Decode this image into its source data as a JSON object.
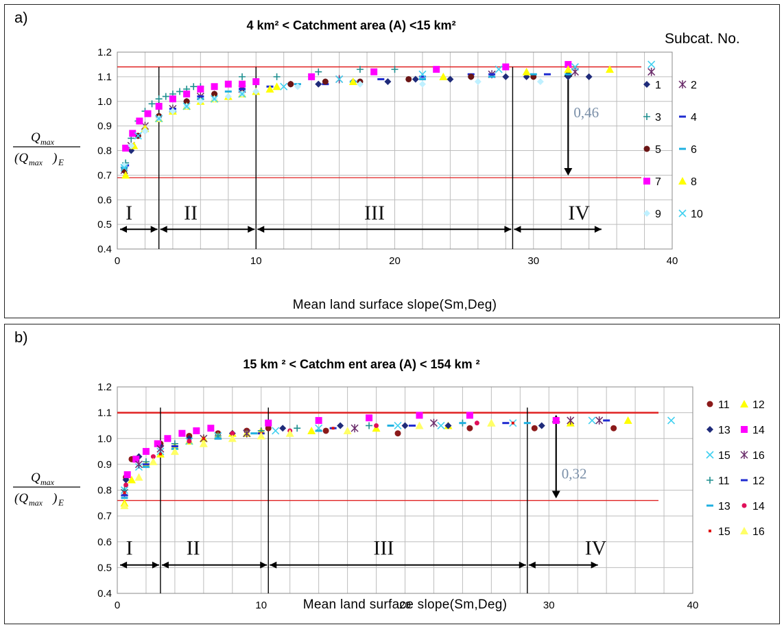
{
  "chart_data": [
    {
      "type": "scatter",
      "panel": "a)",
      "title": "4 km² < Catchment area (A) <15 km²",
      "xlabel": "Mean land surface slope(Sm,Deg)",
      "ylabel": "Qmax / (Qmax)E",
      "ylabel_num": "Q",
      "ylabel_num_sub": "max",
      "ylabel_den": "(Q",
      "ylabel_den_sub": "max",
      "ylabel_den_end": ")",
      "ylabel_den_E": "E",
      "xlim": [
        0,
        40
      ],
      "ylim": [
        0.4,
        1.2
      ],
      "xticks": [
        "0",
        "10",
        "20",
        "30",
        "40"
      ],
      "yticks": [
        "0.4",
        "0.5",
        "0.6",
        "0.7",
        "0.8",
        "0.9",
        "1.0",
        "1.1",
        "1.2"
      ],
      "grid": true,
      "legend_title": "Subcat. No.",
      "legend_position": "right",
      "series": [
        {
          "name": "1",
          "marker": "diamond",
          "color": "#1f2b7a",
          "x": [
            0.5,
            1,
            2,
            3,
            5,
            7,
            9,
            12.5,
            14.5,
            17,
            19.5,
            21.5,
            24,
            25.5,
            28,
            29.5,
            32.5,
            34
          ],
          "y": [
            0.73,
            0.8,
            0.88,
            0.94,
            1.0,
            1.03,
            1.05,
            1.07,
            1.07,
            1.08,
            1.08,
            1.09,
            1.09,
            1.1,
            1.1,
            1.1,
            1.1,
            1.1
          ]
        },
        {
          "name": "2",
          "marker": "star",
          "color": "#6b2d6b",
          "x": [
            0.5,
            1,
            2,
            4,
            6,
            9,
            16,
            27,
            33,
            38.5
          ],
          "y": [
            0.72,
            0.82,
            0.9,
            0.97,
            1.02,
            1.05,
            1.09,
            1.11,
            1.12,
            1.12
          ]
        },
        {
          "name": "3",
          "marker": "plus",
          "color": "#1f8f8f",
          "x": [
            0.6,
            1,
            1.5,
            2,
            2.5,
            3,
            3.5,
            4,
            4.5,
            5,
            5.5,
            6,
            9,
            11.5,
            14.5,
            17.5,
            20
          ],
          "y": [
            0.75,
            0.85,
            0.92,
            0.96,
            0.99,
            1.01,
            1.02,
            1.03,
            1.04,
            1.05,
            1.06,
            1.06,
            1.1,
            1.1,
            1.12,
            1.13,
            1.13
          ]
        },
        {
          "name": "4",
          "marker": "dash",
          "color": "#1f2bd0",
          "x": [
            0.6,
            2,
            4,
            6,
            9,
            11,
            15,
            19,
            22,
            25.5,
            27,
            31
          ],
          "y": [
            0.74,
            0.88,
            0.97,
            1.02,
            1.05,
            1.06,
            1.07,
            1.09,
            1.1,
            1.11,
            1.11,
            1.11
          ]
        },
        {
          "name": "5",
          "marker": "circle",
          "color": "#6b1515",
          "x": [
            0.5,
            1.5,
            3,
            5,
            7,
            12.5,
            15,
            17.5,
            21,
            25.5,
            30
          ],
          "y": [
            0.72,
            0.86,
            0.94,
            1.0,
            1.03,
            1.07,
            1.08,
            1.08,
            1.09,
            1.1,
            1.1
          ]
        },
        {
          "name": "6",
          "marker": "dash",
          "color": "#1fb0e0",
          "x": [
            0.5,
            2,
            4,
            6,
            8,
            13,
            17,
            22,
            27,
            30,
            32.5
          ],
          "y": [
            0.73,
            0.88,
            0.96,
            1.01,
            1.04,
            1.07,
            1.08,
            1.09,
            1.1,
            1.11,
            1.11
          ]
        },
        {
          "name": "7",
          "marker": "square",
          "color": "#ff00ff",
          "x": [
            0.6,
            1.1,
            1.6,
            2.2,
            3,
            4,
            5,
            6,
            7,
            8,
            9,
            10,
            14,
            18.5,
            23,
            28,
            32.5
          ],
          "y": [
            0.81,
            0.87,
            0.92,
            0.95,
            0.98,
            1.01,
            1.03,
            1.05,
            1.06,
            1.07,
            1.07,
            1.08,
            1.1,
            1.12,
            1.13,
            1.14,
            1.15
          ]
        },
        {
          "name": "8",
          "marker": "triangle",
          "color": "#ffff00",
          "x": [
            0.6,
            1.2,
            2,
            3,
            4,
            5,
            6,
            7,
            8,
            9,
            10,
            11,
            11.5,
            17,
            23.5,
            29.5,
            32.5,
            35.5
          ],
          "y": [
            0.7,
            0.82,
            0.89,
            0.93,
            0.96,
            0.98,
            1.0,
            1.01,
            1.02,
            1.03,
            1.04,
            1.05,
            1.06,
            1.08,
            1.1,
            1.12,
            1.13,
            1.13
          ]
        },
        {
          "name": "9",
          "marker": "diamond",
          "color": "#bff0ff",
          "x": [
            0.5,
            1,
            2,
            3,
            4,
            5,
            6,
            7,
            8,
            9,
            10,
            13,
            17.5,
            22,
            26,
            30.5
          ],
          "y": [
            0.74,
            0.82,
            0.88,
            0.93,
            0.96,
            0.98,
            1.0,
            1.01,
            1.02,
            1.03,
            1.04,
            1.06,
            1.07,
            1.07,
            1.08,
            1.08
          ]
        },
        {
          "name": "10",
          "marker": "x",
          "color": "#40d0f0",
          "x": [
            0.5,
            1.5,
            3,
            5,
            7,
            9,
            12,
            16,
            22,
            27.5,
            33,
            38.5
          ],
          "y": [
            0.73,
            0.86,
            0.93,
            0.98,
            1.01,
            1.03,
            1.06,
            1.09,
            1.11,
            1.13,
            1.14,
            1.15
          ]
        }
      ],
      "reference_lines": {
        "y_upper": 1.14,
        "y_lower": 0.69,
        "vertical_x": [
          3,
          10,
          28.5
        ],
        "annotation": "0,46"
      },
      "zones": [
        "I",
        "II",
        "III",
        "IV"
      ]
    },
    {
      "type": "scatter",
      "panel": "b)",
      "title": "15 km ² < Catchm ent area (A) < 154 km ²",
      "xlabel": "Mean land surface slope(Sm,Deg)",
      "ylabel": "Qmax / (Qmax)E",
      "ylabel_num": "Q",
      "ylabel_num_sub": "max",
      "ylabel_den": "(Q",
      "ylabel_den_sub": "max",
      "ylabel_den_end": ")",
      "ylabel_den_E": "E",
      "xlim": [
        0,
        40
      ],
      "ylim": [
        0.4,
        1.2
      ],
      "xticks": [
        "0",
        "10",
        "20",
        "30",
        "40"
      ],
      "yticks": [
        "0.4",
        "0.5",
        "0.6",
        "0.7",
        "0.8",
        "0.9",
        "1.0",
        "1.1",
        "1.2"
      ],
      "grid": true,
      "legend_position": "right",
      "series": [
        {
          "name": "11",
          "marker": "circle",
          "color": "#8b1a1a",
          "x": [
            0.6,
            1,
            2,
            3,
            5,
            7,
            9,
            10.5,
            14.5,
            19.5,
            24.5,
            29,
            34.5
          ],
          "y": [
            0.85,
            0.92,
            0.95,
            0.98,
            1.01,
            1.02,
            1.03,
            1.04,
            1.03,
            1.02,
            1.04,
            1.04,
            1.04
          ]
        },
        {
          "name": "12",
          "marker": "triangle",
          "color": "#ffff00",
          "x": [
            0.5,
            1,
            2,
            3,
            4,
            5,
            6,
            7,
            8,
            9,
            10,
            13.5,
            18,
            23,
            26,
            31.5,
            35.5
          ],
          "y": [
            0.75,
            0.84,
            0.9,
            0.94,
            0.97,
            0.99,
            1.0,
            1.01,
            1.02,
            1.02,
            1.03,
            1.03,
            1.04,
            1.05,
            1.06,
            1.06,
            1.07
          ]
        },
        {
          "name": "13",
          "marker": "diamond",
          "color": "#1f2b7a",
          "x": [
            0.6,
            1.5,
            3,
            5,
            8,
            11.5,
            15.5,
            20,
            23,
            29.5
          ],
          "y": [
            0.84,
            0.93,
            0.97,
            1.0,
            1.02,
            1.04,
            1.05,
            1.05,
            1.05,
            1.05
          ]
        },
        {
          "name": "14",
          "marker": "square",
          "color": "#ff00ff",
          "x": [
            0.7,
            1.3,
            2,
            2.8,
            3.5,
            4.5,
            5.5,
            6.5,
            10.5,
            14,
            17.5,
            21,
            24.5,
            30.5
          ],
          "y": [
            0.86,
            0.92,
            0.95,
            0.98,
            1.0,
            1.02,
            1.03,
            1.04,
            1.06,
            1.07,
            1.08,
            1.09,
            1.09,
            1.07
          ]
        },
        {
          "name": "15",
          "marker": "x",
          "color": "#40d0f0",
          "x": [
            0.5,
            1.5,
            3,
            5,
            7,
            9,
            11,
            14,
            19.5,
            22.5,
            27.5,
            33,
            38.5
          ],
          "y": [
            0.8,
            0.89,
            0.95,
            0.99,
            1.01,
            1.02,
            1.03,
            1.04,
            1.05,
            1.05,
            1.06,
            1.07,
            1.07
          ]
        },
        {
          "name": "16",
          "marker": "star",
          "color": "#6b2d6b",
          "x": [
            0.5,
            1.5,
            3,
            6,
            9,
            16.5,
            22,
            31.5,
            33.5
          ],
          "y": [
            0.79,
            0.9,
            0.96,
            1.0,
            1.02,
            1.04,
            1.06,
            1.07,
            1.07
          ]
        },
        {
          "name": "11",
          "marker": "plus",
          "color": "#1f8f8f",
          "x": [
            0.5,
            2,
            4,
            7,
            10,
            12.5,
            17.5,
            24
          ],
          "y": [
            0.8,
            0.91,
            0.98,
            1.01,
            1.03,
            1.04,
            1.05,
            1.06
          ]
        },
        {
          "name": "12",
          "marker": "dash",
          "color": "#1f2bd0",
          "x": [
            0.5,
            2,
            4,
            7,
            10,
            15,
            20.5,
            27,
            34
          ],
          "y": [
            0.78,
            0.9,
            0.97,
            1.0,
            1.02,
            1.04,
            1.05,
            1.06,
            1.07
          ]
        },
        {
          "name": "13",
          "marker": "dash",
          "color": "#1fb0e0",
          "x": [
            0.5,
            2,
            4,
            7,
            9.5,
            14,
            19,
            24,
            28.5
          ],
          "y": [
            0.77,
            0.89,
            0.96,
            1.0,
            1.02,
            1.03,
            1.05,
            1.06,
            1.06
          ]
        },
        {
          "name": "14",
          "marker": "smallcircle",
          "color": "#e0105a",
          "x": [
            0.6,
            2.5,
            5,
            8,
            12,
            18,
            25
          ],
          "y": [
            0.82,
            0.93,
            0.99,
            1.02,
            1.03,
            1.05,
            1.06
          ]
        },
        {
          "name": "15",
          "marker": "dot",
          "color": "#e01010",
          "x": [
            0.5,
            3,
            6,
            10,
            15,
            21,
            27.5
          ],
          "y": [
            0.79,
            0.94,
            1.0,
            1.02,
            1.04,
            1.05,
            1.06
          ]
        },
        {
          "name": "16",
          "marker": "triangle",
          "color": "#ffff66",
          "x": [
            0.5,
            1.5,
            2.5,
            4,
            6,
            8,
            10,
            12,
            16,
            21,
            26
          ],
          "y": [
            0.74,
            0.85,
            0.91,
            0.95,
            0.98,
            1.0,
            1.01,
            1.02,
            1.03,
            1.05,
            1.06
          ]
        }
      ],
      "reference_lines": {
        "y_upper": 1.1,
        "y_lower": 0.76,
        "vertical_x": [
          3,
          10.5,
          28.5
        ],
        "annotation": "0,32"
      },
      "zones": [
        "I",
        "II",
        "III",
        "IV"
      ]
    }
  ]
}
